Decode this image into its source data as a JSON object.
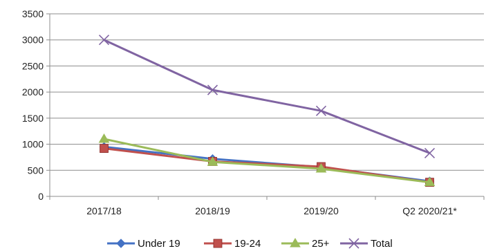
{
  "chart_data": {
    "type": "line",
    "title": "",
    "xlabel": "",
    "ylabel": "",
    "categories": [
      "2017/18",
      "2018/19",
      "2019/20",
      "Q2 2020/21*"
    ],
    "ylim": [
      0,
      3500
    ],
    "yticks": [
      0,
      500,
      1000,
      1500,
      2000,
      2500,
      3000,
      3500
    ],
    "grid": "horizontal",
    "legend": "bottom",
    "series": [
      {
        "name": "Under 19",
        "values": [
          950,
          720,
          560,
          290
        ],
        "color": "#4472C4",
        "marker": "diamond"
      },
      {
        "name": "19-24",
        "values": [
          920,
          670,
          570,
          270
        ],
        "color": "#C0504D",
        "marker": "square"
      },
      {
        "name": "25+",
        "values": [
          1100,
          660,
          530,
          270
        ],
        "color": "#9BBB59",
        "marker": "triangle"
      },
      {
        "name": "Total",
        "values": [
          3000,
          2040,
          1640,
          830
        ],
        "color": "#8064A2",
        "marker": "x"
      }
    ]
  }
}
